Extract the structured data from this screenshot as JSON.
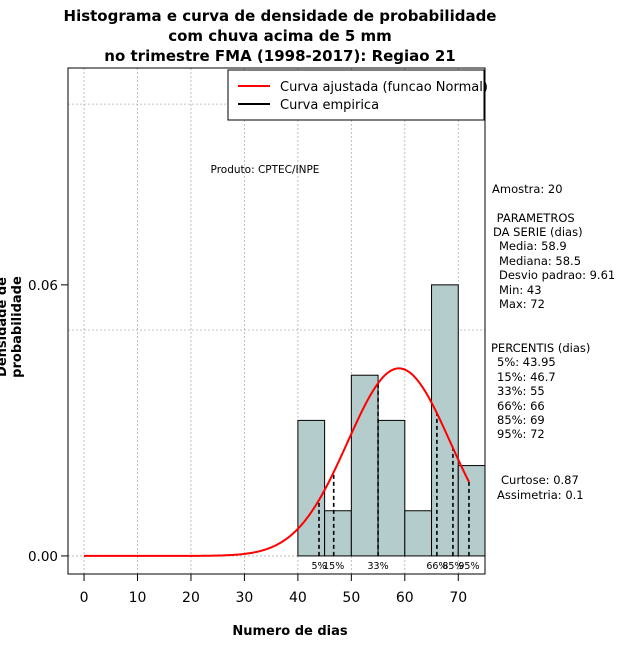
{
  "chart_data": {
    "type": "bar",
    "title_lines": [
      "Histograma e curva de densidade de probabilidade",
      "com chuva acima de 5 mm",
      "no trimestre FMA (1998-2017): Regiao 21"
    ],
    "xlabel": "Numero de dias",
    "ylabel": "Densidade de probabilidade",
    "xlim": [
      -3,
      75
    ],
    "ylim": [
      -0.004,
      0.108
    ],
    "x_ticks": [
      0,
      10,
      20,
      30,
      40,
      50,
      60,
      70
    ],
    "y_ticks": [
      0.0,
      0.06
    ],
    "y_tick_labels": [
      "0.00",
      "0.06"
    ],
    "grid_x": [
      0,
      10,
      20,
      30,
      40,
      50,
      60,
      70
    ],
    "grid_y": [
      0.0,
      0.05,
      0.1
    ],
    "bins": [
      {
        "start": 40,
        "end": 45,
        "density": 0.03
      },
      {
        "start": 45,
        "end": 50,
        "density": 0.01
      },
      {
        "start": 50,
        "end": 55,
        "density": 0.04
      },
      {
        "start": 55,
        "end": 60,
        "density": 0.03
      },
      {
        "start": 60,
        "end": 65,
        "density": 0.01
      },
      {
        "start": 65,
        "end": 70,
        "density": 0.06
      },
      {
        "start": 70,
        "end": 75,
        "density": 0.02
      }
    ],
    "normal_fit": {
      "mean": 58.9,
      "sd": 9.61,
      "x_start": 0,
      "x_end": 72
    },
    "percentile_lines": [
      {
        "x": 43.95,
        "label": "5%"
      },
      {
        "x": 46.7,
        "label": "15%"
      },
      {
        "x": 55,
        "label": "33%"
      },
      {
        "x": 66,
        "label": "66%"
      },
      {
        "x": 69,
        "label": "85%"
      },
      {
        "x": 72,
        "label": "95%"
      }
    ],
    "legend": [
      {
        "label": "Curva ajustada (funcao Normal)",
        "color": "#ff0000"
      },
      {
        "label": "Curva empirica",
        "color": "#000000"
      }
    ],
    "legend_position": "top-right",
    "bar_color": "#b4cccb",
    "annotation": "Produto: CPTEC/INPE"
  },
  "stats": {
    "amostra": "Amostra: 20",
    "parametros_title": " PARAMETROS",
    "parametros_sub": "DA SERIE (dias)",
    "media": "Media: 58.9",
    "mediana": "Mediana: 58.5",
    "desvio": "Desvio padrao: 9.61",
    "min": "Min: 43",
    "max": "Max: 72",
    "percentis_title": "PERCENTIS (dias)",
    "p5": "5%: 43.95",
    "p15": "15%: 46.7",
    "p33": "33%: 55",
    "p66": "66%: 66",
    "p85": "85%: 69",
    "p95": "95%: 72",
    "curtose": "Curtose: 0.87",
    "assimetria": "Assimetria: 0.1"
  }
}
